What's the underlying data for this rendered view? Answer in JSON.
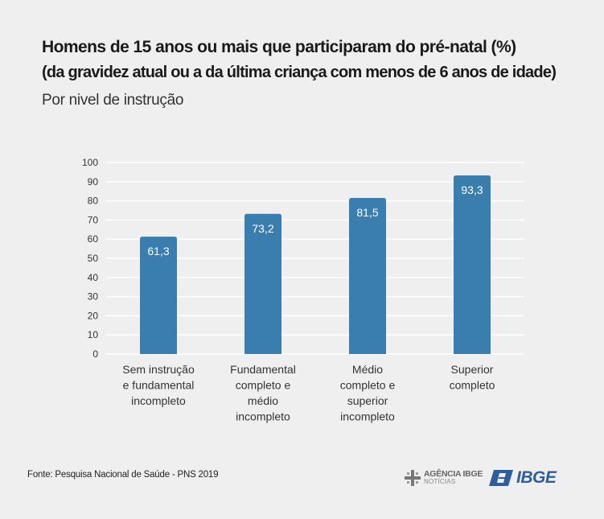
{
  "header": {
    "title_line1": "Homens de 15 anos ou mais que participaram do pré-natal (%)",
    "title_line2": "(da gravidez atual ou a da última criança com menos de 6 anos de idade)",
    "subtitle": "Por nivel de instrução"
  },
  "chart_data": {
    "type": "bar",
    "categories": [
      [
        "Sem instrução",
        "e fundamental",
        "incompleto"
      ],
      [
        "Fundamental",
        "completo e",
        "médio",
        "incompleto"
      ],
      [
        "Médio",
        "completo e",
        "superior",
        "incompleto"
      ],
      [
        "Superior",
        "completo"
      ]
    ],
    "values": [
      61.3,
      73.2,
      81.5,
      93.3
    ],
    "data_labels": [
      "61,3",
      "73,2",
      "81,5",
      "93,3"
    ],
    "yticks": [
      "0",
      "10",
      "20",
      "30",
      "40",
      "50",
      "60",
      "70",
      "80",
      "90",
      "100"
    ],
    "ylim": [
      0,
      100
    ],
    "grid": true,
    "bar_color": "#3a7eaf",
    "grid_color": "#ffffff"
  },
  "footer": {
    "source": "Fonte: Pesquisa Nacional de Saúde - PNS 2019",
    "agencia_main": "AGÊNCIA IBGE",
    "agencia_sub": "NOTÍCIAS",
    "ibge": "IBGE",
    "brand_color": "#2e5e9e"
  }
}
